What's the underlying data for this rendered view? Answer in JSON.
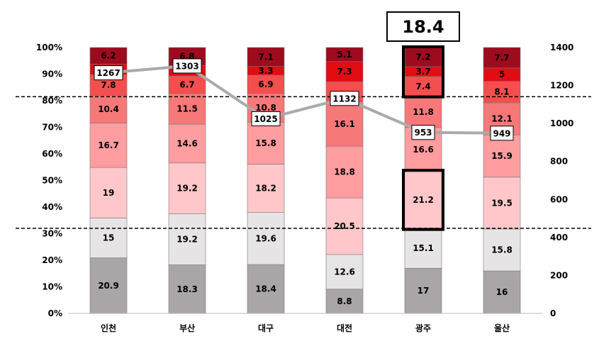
{
  "chart_data": {
    "type": "bar",
    "stacked": true,
    "normalized_percent": true,
    "categories": [
      "인천",
      "부산",
      "대구",
      "대전",
      "광주",
      "울산"
    ],
    "series": [
      {
        "color": "#aaa6a8",
        "values": [
          20.9,
          18.3,
          18.4,
          8.8,
          17,
          16
        ]
      },
      {
        "color": "#e6e4e5",
        "values": [
          15,
          19.2,
          19.6,
          12.6,
          15.1,
          15.8
        ]
      },
      {
        "color": "#ffc7ca",
        "values": [
          19,
          19.2,
          18.2,
          20.5,
          21.2,
          19.5
        ]
      },
      {
        "color": "#ff9da0",
        "values": [
          16.7,
          14.6,
          15.8,
          18.8,
          16.6,
          15.9
        ]
      },
      {
        "color": "#f77878",
        "values": [
          10.4,
          11.5,
          10.8,
          16.1,
          11.8,
          12.1
        ]
      },
      {
        "color": "#f44e4e",
        "values": [
          7.8,
          6.7,
          6.9,
          7.3,
          7.4,
          8.1
        ]
      },
      {
        "color": "#e20c12",
        "values": [
          4,
          3.9,
          3.3,
          7.3,
          3.7,
          5
        ]
      },
      {
        "color": "#9e0b1e",
        "values": [
          6.2,
          6.8,
          7.1,
          5.1,
          7.2,
          7.7
        ]
      }
    ],
    "segment_labels": [
      [
        "20.9",
        "15",
        "19",
        "16.7",
        "10.4",
        "7.8",
        "",
        "6.2"
      ],
      [
        "18.3",
        "19.2",
        "19.2",
        "14.6",
        "11.5",
        "6.7",
        "",
        "6.8"
      ],
      [
        "18.4",
        "19.6",
        "18.2",
        "15.8",
        "10.8",
        "6.9",
        "3.3",
        "7.1"
      ],
      [
        "8.8",
        "12.6",
        "20.5",
        "18.8",
        "16.1",
        "",
        "7.3",
        "5.1"
      ],
      [
        "17",
        "15.1",
        "21.2",
        "16.6",
        "11.8",
        "7.4",
        "3.7",
        "7.2"
      ],
      [
        "16",
        "15.8",
        "19.5",
        "15.9",
        "12.1",
        "8.1",
        "5",
        "7.7"
      ]
    ],
    "line_series": {
      "color": "#aaaaaa",
      "values": [
        1267,
        1303,
        1025,
        1132,
        953,
        949
      ]
    },
    "y_left": {
      "min": 0,
      "max": 100,
      "step": 10,
      "ticks": [
        "0%",
        "10%",
        "20%",
        "30%",
        "40%",
        "50%",
        "60%",
        "70%",
        "80%",
        "90%",
        "100%"
      ]
    },
    "y_right": {
      "min": 0,
      "max": 1400,
      "step": 200,
      "ticks": [
        "0",
        "200",
        "400",
        "600",
        "800",
        "1000",
        "1200",
        "1400"
      ]
    },
    "reference_lines_percent": [
      32,
      81.5
    ],
    "highlight": {
      "category": "광주",
      "callout": "18.4",
      "boxed_segments": [
        2,
        5,
        6,
        7
      ]
    },
    "grid": false,
    "legend": "none"
  }
}
